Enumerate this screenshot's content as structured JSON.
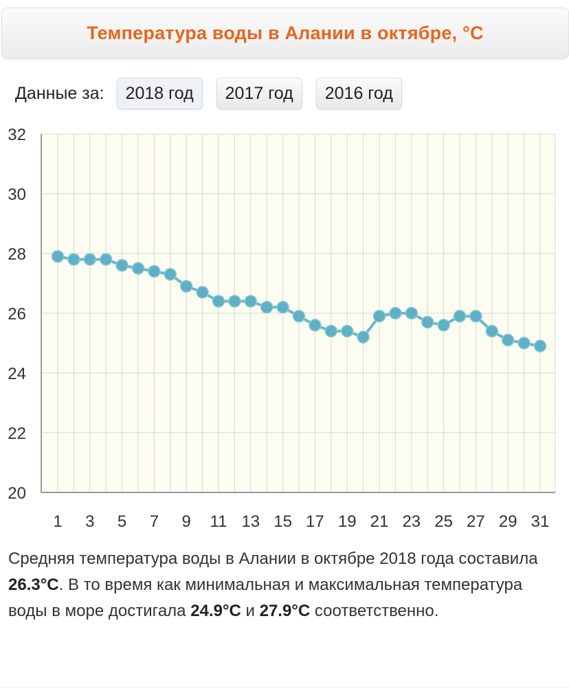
{
  "page": {
    "title": "Температура воды в Алании в октябре, °C"
  },
  "year_selector": {
    "label": "Данные за:",
    "buttons": [
      {
        "label": "2018 год",
        "active": true
      },
      {
        "label": "2017 год",
        "active": false
      },
      {
        "label": "2016 год",
        "active": false
      }
    ]
  },
  "chart_data": {
    "type": "line",
    "x": [
      1,
      2,
      3,
      4,
      5,
      6,
      7,
      8,
      9,
      10,
      11,
      12,
      13,
      14,
      15,
      16,
      17,
      18,
      19,
      20,
      21,
      22,
      23,
      24,
      25,
      26,
      27,
      28,
      29,
      30,
      31
    ],
    "series": [
      {
        "values": [
          27.9,
          27.8,
          27.8,
          27.8,
          27.6,
          27.5,
          27.4,
          27.3,
          26.9,
          26.7,
          26.4,
          26.4,
          26.4,
          26.2,
          26.2,
          25.9,
          25.6,
          25.4,
          25.4,
          25.2,
          25.9,
          26.0,
          26.0,
          25.7,
          25.6,
          25.9,
          25.9,
          25.4,
          25.1,
          25.0,
          24.9
        ]
      }
    ],
    "x_tick_labels": [
      "1",
      "3",
      "5",
      "7",
      "9",
      "11",
      "13",
      "15",
      "17",
      "19",
      "21",
      "23",
      "25",
      "27",
      "29",
      "31"
    ],
    "y_tick_labels": [
      "20",
      "22",
      "24",
      "26",
      "28",
      "30",
      "32"
    ],
    "xlim": [
      1,
      31
    ],
    "ylim": [
      20,
      32
    ],
    "grid": true,
    "colors": {
      "line": "#6bb7c9",
      "marker": "#5fb0c4",
      "plot_bg": "#fdfcf1",
      "grid": "#d8d8d8",
      "axis": "#9a9a9a"
    }
  },
  "summary": {
    "part1": "Средняя температура воды в Алании в октябре 2018 года составила ",
    "avg": "26.3°C",
    "part2": ". В то время как минимальная и максимальная температура воды в море достигала ",
    "min": "24.9°C",
    "part3": " и ",
    "max": "27.9°C",
    "part4": " соответственно."
  }
}
